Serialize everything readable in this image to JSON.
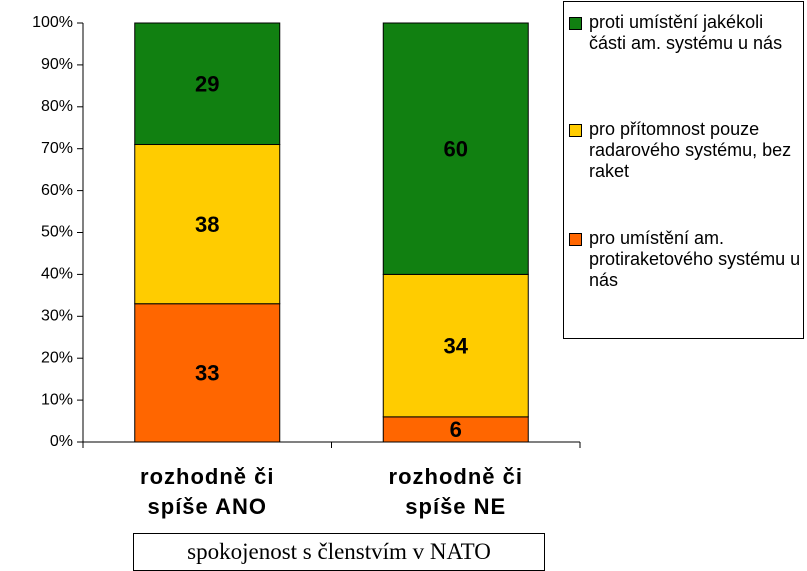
{
  "chart_data": {
    "type": "stacked_bar",
    "categories": [
      "rozhodně či spíše ANO",
      "rozhodně či spíše NE"
    ],
    "series": [
      {
        "name": "pro umístění am. protiraketového systému u nás",
        "color": "#ff6600",
        "values": [
          33,
          6
        ]
      },
      {
        "name": "pro přítomnost pouze radarového systému, bez raket",
        "color": "#ffcc00",
        "values": [
          38,
          34
        ]
      },
      {
        "name": "proti umístění jakékoli části am. systému u nás",
        "color": "#118011",
        "values": [
          29,
          60
        ]
      }
    ],
    "ylim": [
      0,
      100
    ],
    "yticks": [
      {
        "value": 0,
        "label": "0%"
      },
      {
        "value": 10,
        "label": "10%"
      },
      {
        "value": 20,
        "label": "20%"
      },
      {
        "value": 30,
        "label": "30%"
      },
      {
        "value": 40,
        "label": "40%"
      },
      {
        "value": 50,
        "label": "50%"
      },
      {
        "value": 60,
        "label": "60%"
      },
      {
        "value": 70,
        "label": "70%"
      },
      {
        "value": 80,
        "label": "80%"
      },
      {
        "value": 90,
        "label": "90%"
      },
      {
        "value": 100,
        "label": "100%"
      }
    ],
    "xlabel": "spokojenost s členstvím v NATO",
    "legend": "right"
  }
}
